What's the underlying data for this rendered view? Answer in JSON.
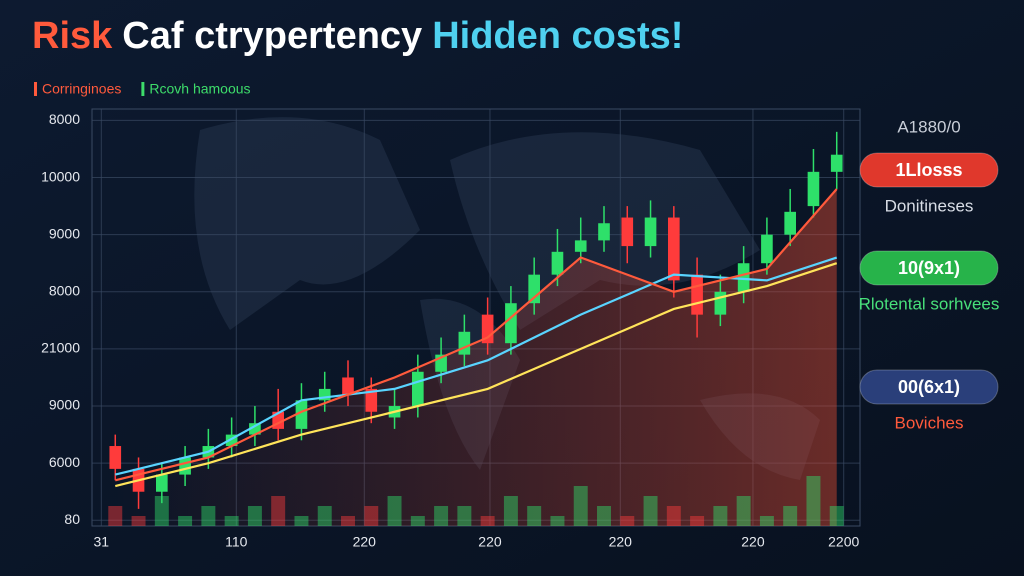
{
  "chart_data": {
    "type": "candlestick",
    "title": [
      {
        "text": "Risk",
        "color": "#ff5a3c"
      },
      {
        "text": "Caf ctrypertency",
        "color": "#ffffff"
      },
      {
        "text": "Hidden costs!",
        "color": "#4fd1f0"
      }
    ],
    "legend": [
      {
        "name": "Corringinoes",
        "color": "#ff5a3c"
      },
      {
        "name": "Rcovh hamoous",
        "color": "#3ddc6a"
      }
    ],
    "up_color": "#2ee06a",
    "down_color": "#ff3b3b",
    "xlim": [
      -1,
      32
    ],
    "xticks": [
      {
        "value": -0.6,
        "label": "31"
      },
      {
        "value": 5.2,
        "label": "110"
      },
      {
        "value": 10.7,
        "label": "220"
      },
      {
        "value": 16.1,
        "label": "220"
      },
      {
        "value": 21.7,
        "label": "220"
      },
      {
        "value": 27.4,
        "label": "220"
      },
      {
        "value": 31.3,
        "label": "2200"
      }
    ],
    "ylim": [
      -0.1,
      7.2
    ],
    "yticks": [
      {
        "value": 7,
        "label": "8000"
      },
      {
        "value": 6,
        "label": "10000"
      },
      {
        "value": 5,
        "label": "9000"
      },
      {
        "value": 4,
        "label": "8000"
      },
      {
        "value": 3,
        "label": "21000"
      },
      {
        "value": 2,
        "label": "9000"
      },
      {
        "value": 1,
        "label": "6000"
      },
      {
        "value": 0,
        "label": "80"
      }
    ],
    "grid": true,
    "open": [
      1.3,
      0.9,
      0.5,
      0.8,
      1.1,
      1.3,
      1.5,
      1.9,
      1.6,
      2.1,
      2.5,
      2.3,
      1.8,
      2.0,
      2.6,
      2.9,
      3.6,
      3.1,
      3.8,
      4.3,
      4.7,
      4.9,
      5.3,
      4.8,
      5.3,
      4.3,
      3.6,
      4.0,
      4.5,
      5.0,
      5.5,
      6.1
    ],
    "high": [
      1.5,
      1.1,
      1.0,
      1.3,
      1.6,
      1.8,
      2.0,
      2.3,
      2.4,
      2.6,
      2.8,
      2.5,
      2.3,
      2.9,
      3.2,
      3.6,
      3.9,
      4.1,
      4.6,
      5.1,
      5.3,
      5.5,
      5.5,
      5.6,
      5.5,
      4.6,
      4.3,
      4.8,
      5.3,
      5.8,
      6.5,
      6.8
    ],
    "low": [
      0.7,
      0.2,
      0.3,
      0.6,
      0.9,
      1.1,
      1.3,
      1.4,
      1.4,
      1.9,
      2.0,
      1.7,
      1.6,
      1.8,
      2.4,
      2.7,
      2.9,
      2.9,
      3.6,
      4.1,
      4.5,
      4.7,
      4.5,
      4.6,
      3.9,
      3.2,
      3.4,
      3.8,
      4.3,
      4.8,
      5.3,
      5.8
    ],
    "close": [
      0.9,
      0.5,
      0.8,
      1.1,
      1.3,
      1.5,
      1.7,
      1.6,
      2.1,
      2.3,
      2.2,
      1.9,
      2.0,
      2.6,
      2.9,
      3.3,
      3.1,
      3.8,
      4.3,
      4.7,
      4.9,
      5.2,
      4.8,
      5.3,
      4.2,
      3.6,
      4.0,
      4.5,
      5.0,
      5.4,
      6.1,
      6.4
    ],
    "volume": [
      2,
      1,
      3,
      1,
      2,
      1,
      2,
      3,
      1,
      2,
      1,
      2,
      3,
      1,
      2,
      2,
      1,
      3,
      2,
      1,
      4,
      2,
      1,
      3,
      2,
      1,
      2,
      3,
      1,
      2,
      5,
      2
    ],
    "lines": [
      {
        "color": "#ffe45a",
        "x": [
          0,
          4,
          8,
          12,
          16,
          20,
          24,
          28,
          31
        ],
        "values": [
          0.6,
          1.0,
          1.5,
          1.9,
          2.3,
          3.0,
          3.7,
          4.1,
          4.5
        ]
      },
      {
        "color": "#59d4ff",
        "x": [
          0,
          4,
          8,
          12,
          16,
          20,
          24,
          28,
          31
        ],
        "values": [
          0.8,
          1.2,
          2.1,
          2.3,
          2.8,
          3.6,
          4.3,
          4.2,
          4.6
        ]
      },
      {
        "color": "#ff5a3c",
        "x": [
          0,
          4,
          8,
          12,
          16,
          20,
          24,
          28,
          31
        ],
        "values": [
          0.7,
          1.1,
          1.9,
          2.5,
          3.2,
          4.6,
          4.0,
          4.4,
          5.8
        ]
      }
    ],
    "annotations": [
      {
        "text": "A1880/0",
        "style": "plain",
        "color": "#c8ced8"
      },
      {
        "text": "1Llosss",
        "style": "pill",
        "color": "#e0382c"
      },
      {
        "text": "Donitineses",
        "style": "plain",
        "color": "#d8dde6"
      },
      {
        "text": "10(9x1)",
        "style": "pill",
        "color": "#27b34a"
      },
      {
        "text": "Rlotental sorhvees",
        "style": "plain",
        "color": "#48e07a"
      },
      {
        "text": "00(6x1)",
        "style": "pill",
        "color": "#2a3f7a"
      },
      {
        "text": "Boviches",
        "style": "plain",
        "color": "#ff5a3c"
      }
    ]
  }
}
